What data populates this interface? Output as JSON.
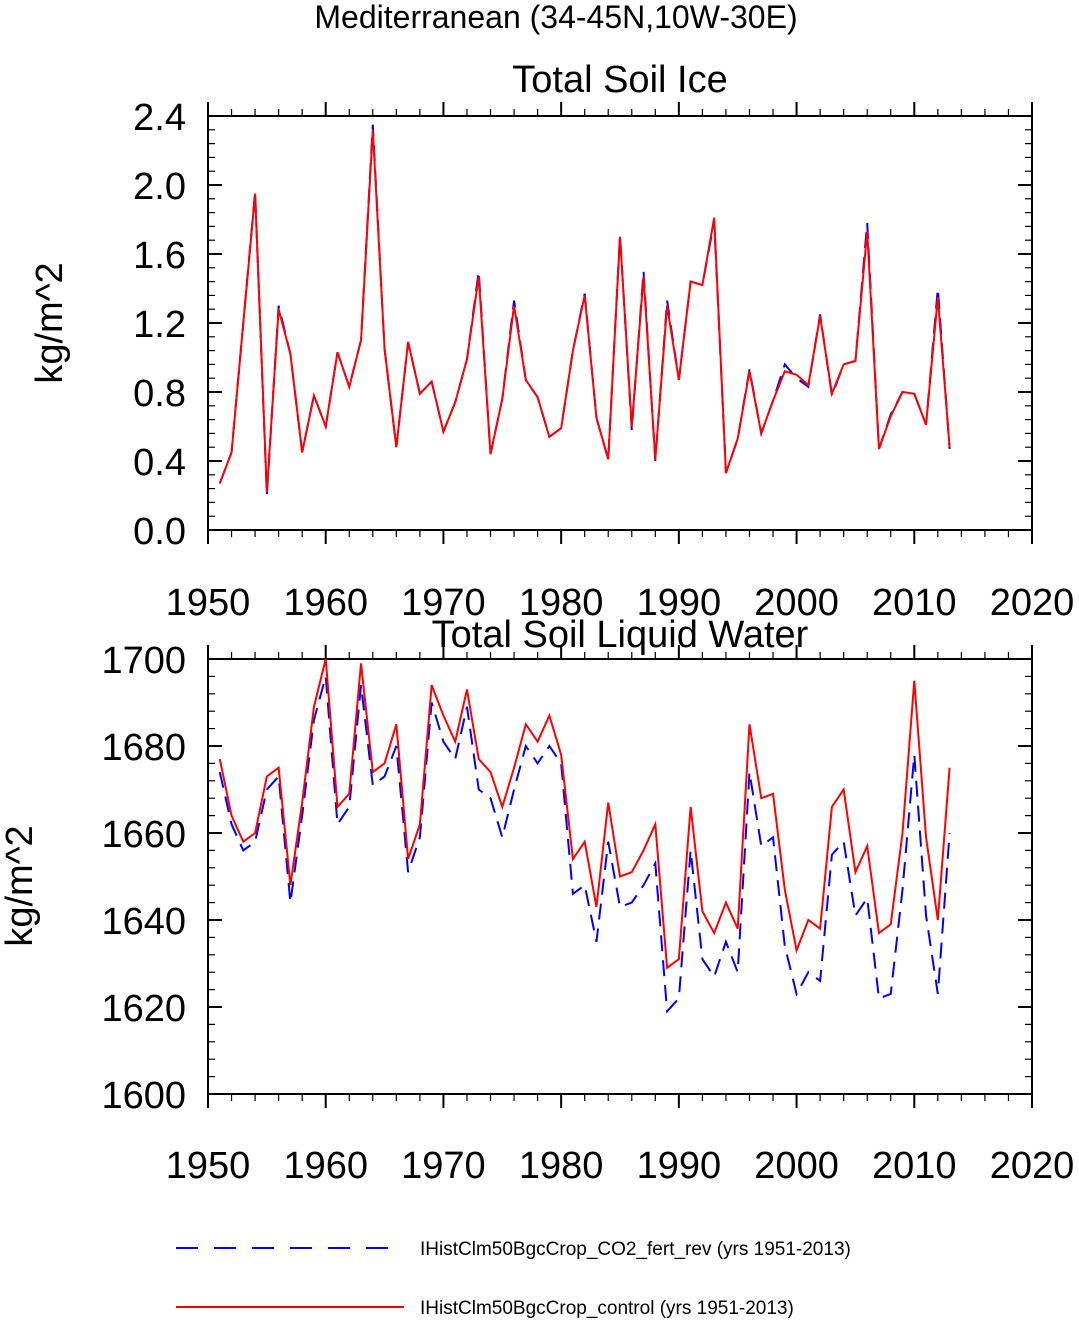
{
  "figure_title": "Mediterranean (34-45N,10W-30E)",
  "colors": {
    "control": "#ff0000",
    "co2_fert_rev": "#0000ff",
    "axes": "#000000"
  },
  "legend": {
    "placement": "bottom",
    "entries": [
      {
        "key": "co2_fert_rev",
        "label": "IHistClm50BgcCrop_CO2_fert_rev (yrs 1951-2013)",
        "style": "dashed"
      },
      {
        "key": "control",
        "label": "IHistClm50BgcCrop_control (yrs 1951-2013)",
        "style": "solid"
      }
    ]
  },
  "chart_data": [
    {
      "type": "line",
      "title": "Total Soil Ice",
      "ylabel": "kg/m^2",
      "xlabel": "",
      "xlim": [
        1950,
        2020
      ],
      "ylim": [
        0.0,
        2.4
      ],
      "xticks": [
        1950,
        1960,
        1970,
        1980,
        1990,
        2000,
        2010,
        2020
      ],
      "yticks": [
        "0.0",
        "0.4",
        "0.8",
        "1.2",
        "1.6",
        "2.0",
        "2.4"
      ],
      "x_start": 1951,
      "series": [
        {
          "key": "co2_fert_rev",
          "style": "dashed",
          "values": [
            0.27,
            0.45,
            1.2,
            1.96,
            0.2,
            1.3,
            1.02,
            0.45,
            0.78,
            0.6,
            1.03,
            0.83,
            1.1,
            2.35,
            1.05,
            0.48,
            1.09,
            0.79,
            0.86,
            0.57,
            0.74,
            0.99,
            1.5,
            0.44,
            0.76,
            1.33,
            0.87,
            0.77,
            0.54,
            0.59,
            1.04,
            1.37,
            0.65,
            0.41,
            1.71,
            0.58,
            1.5,
            0.4,
            1.33,
            0.87,
            1.44,
            1.42,
            1.79,
            0.33,
            0.53,
            0.93,
            0.56,
            0.75,
            0.96,
            0.88,
            0.83,
            1.25,
            0.78,
            0.96,
            0.98,
            1.78,
            0.47,
            0.67,
            0.8,
            0.79,
            0.61,
            1.4,
            0.47
          ]
        },
        {
          "key": "control",
          "style": "solid",
          "values": [
            0.27,
            0.45,
            1.2,
            1.95,
            0.22,
            1.28,
            1.02,
            0.45,
            0.78,
            0.6,
            1.03,
            0.83,
            1.1,
            2.32,
            1.05,
            0.48,
            1.09,
            0.79,
            0.86,
            0.57,
            0.74,
            0.99,
            1.47,
            0.44,
            0.76,
            1.3,
            0.87,
            0.77,
            0.54,
            0.59,
            1.04,
            1.36,
            0.65,
            0.41,
            1.7,
            0.6,
            1.47,
            0.41,
            1.3,
            0.87,
            1.44,
            1.42,
            1.81,
            0.33,
            0.53,
            0.92,
            0.56,
            0.75,
            0.92,
            0.9,
            0.84,
            1.24,
            0.79,
            0.96,
            0.98,
            1.73,
            0.47,
            0.66,
            0.8,
            0.79,
            0.61,
            1.35,
            0.48
          ]
        }
      ]
    },
    {
      "type": "line",
      "title": "Total Soil Liquid Water",
      "ylabel": "kg/m^2",
      "xlabel": "",
      "xlim": [
        1950,
        2020
      ],
      "ylim": [
        1600,
        1700
      ],
      "xticks": [
        1950,
        1960,
        1970,
        1980,
        1990,
        2000,
        2010,
        2020
      ],
      "yticks": [
        "1600",
        "1620",
        "1640",
        "1660",
        "1680",
        "1700"
      ],
      "x_start": 1951,
      "series": [
        {
          "key": "co2_fert_rev",
          "style": "dashed",
          "values": [
            1674,
            1662,
            1656,
            1658,
            1670,
            1673,
            1644,
            1664,
            1686,
            1696,
            1662,
            1666,
            1694,
            1671,
            1673,
            1680,
            1651,
            1659,
            1690,
            1681,
            1677,
            1689,
            1670,
            1668,
            1659,
            1670,
            1680,
            1676,
            1680,
            1676,
            1646,
            1648,
            1635,
            1658,
            1643,
            1644,
            1648,
            1653,
            1619,
            1622,
            1656,
            1631,
            1627,
            1635,
            1628,
            1674,
            1657,
            1659,
            1634,
            1623,
            1628,
            1626,
            1655,
            1658,
            1641,
            1645,
            1622,
            1623,
            1647,
            1678,
            1641,
            1623,
            1660
          ]
        },
        {
          "key": "control",
          "style": "solid",
          "values": [
            1677,
            1664,
            1658,
            1660,
            1673,
            1675,
            1648,
            1667,
            1689,
            1700,
            1666,
            1669,
            1699,
            1674,
            1676,
            1685,
            1654,
            1662,
            1694,
            1687,
            1681,
            1693,
            1677,
            1674,
            1666,
            1675,
            1685,
            1681,
            1687,
            1678,
            1654,
            1658,
            1643,
            1667,
            1650,
            1651,
            1656,
            1662,
            1629,
            1631,
            1666,
            1642,
            1637,
            1644,
            1638,
            1685,
            1668,
            1669,
            1647,
            1633,
            1640,
            1638,
            1666,
            1670,
            1651,
            1657,
            1637,
            1639,
            1660,
            1695,
            1659,
            1640,
            1675
          ]
        }
      ]
    }
  ]
}
